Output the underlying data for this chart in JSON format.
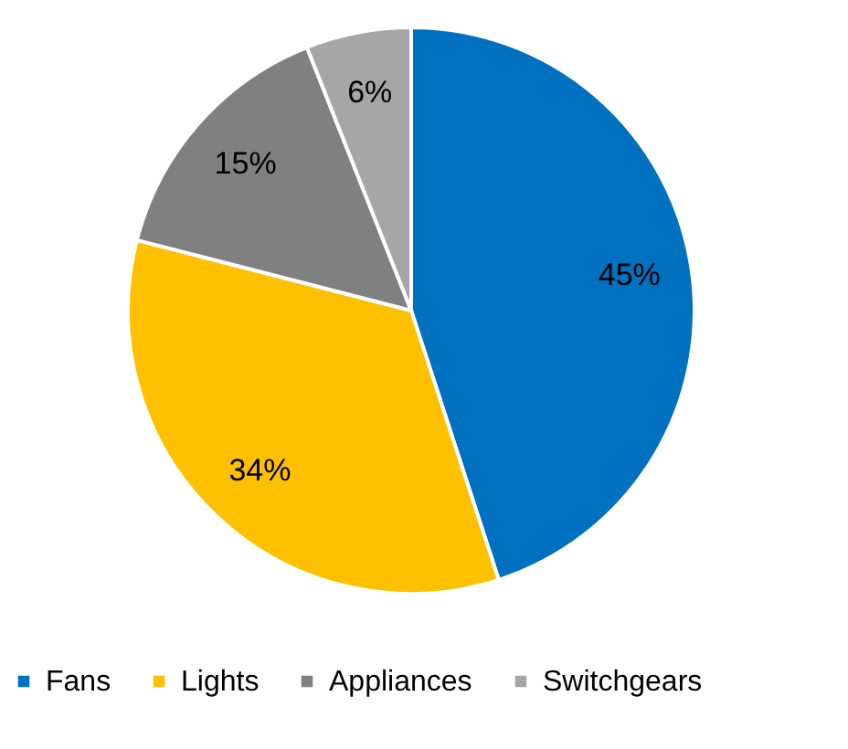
{
  "chart_data": {
    "type": "pie",
    "categories": [
      "Fans",
      "Lights",
      "Appliances",
      "Switchgears"
    ],
    "values": [
      45,
      34,
      15,
      6
    ],
    "colors": [
      "#0070c0",
      "#ffc000",
      "#808080",
      "#a6a6a6"
    ],
    "value_labels": [
      "45%",
      "34%",
      "15%",
      "6%"
    ],
    "legend": "bottom"
  }
}
